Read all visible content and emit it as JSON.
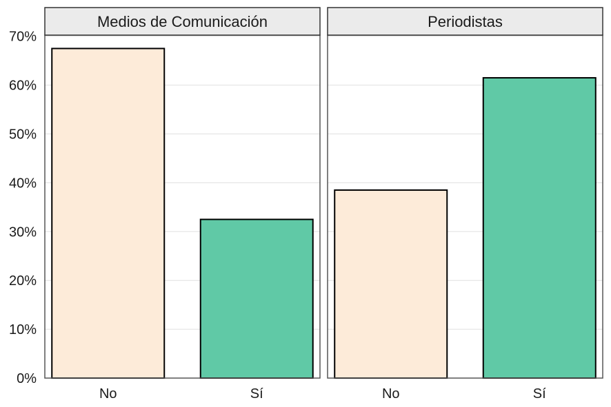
{
  "chart_data": {
    "type": "bar",
    "facets": [
      {
        "label": "Medios de Comunicación",
        "categories": [
          "No",
          "Sí"
        ],
        "values": [
          67.5,
          32.5
        ]
      },
      {
        "label": "Periodistas",
        "categories": [
          "No",
          "Sí"
        ],
        "values": [
          38.5,
          61.5
        ]
      }
    ],
    "y_ticks": [
      "0%",
      "10%",
      "20%",
      "30%",
      "40%",
      "50%",
      "60%",
      "70%"
    ],
    "ylim": [
      0,
      70
    ],
    "y_unit": "%",
    "grid": true,
    "colors": {
      "No": "#FDEBD9",
      "Sí": "#60C9A6",
      "strip_bg": "#EBEBEB",
      "border": "#333333",
      "grid": "#E0E0E0"
    }
  }
}
